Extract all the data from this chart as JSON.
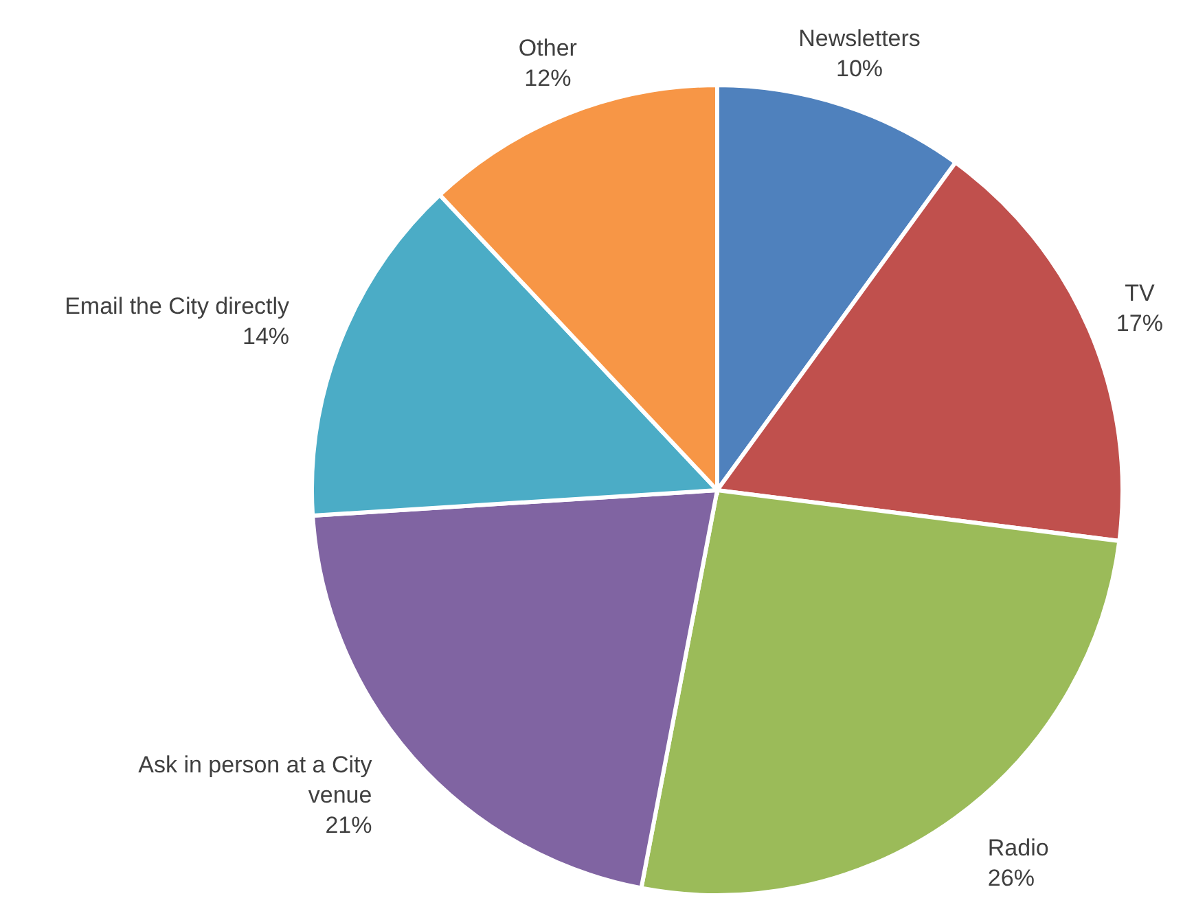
{
  "chart_data": {
    "type": "pie",
    "categories": [
      "Newsletters",
      "TV",
      "Radio",
      "Ask in person at a City venue",
      "Email the City directly",
      "Other"
    ],
    "values": [
      10,
      17,
      26,
      21,
      14,
      12
    ],
    "colors": [
      "#4f81bd",
      "#c0504d",
      "#9bbb59",
      "#8064a2",
      "#4bacc6",
      "#f79646"
    ],
    "value_labels": [
      "10%",
      "17%",
      "26%",
      "21%",
      "14%",
      "12%"
    ]
  }
}
